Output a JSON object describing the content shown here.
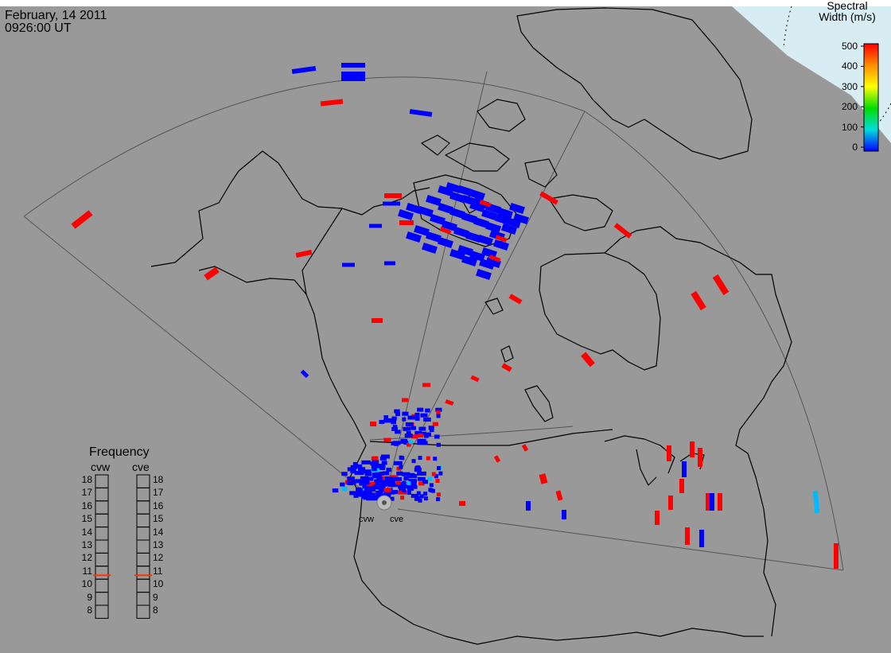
{
  "header": {
    "date": "February, 14 2011",
    "time": "0926:00 UT"
  },
  "colorbar": {
    "title_line1": "Spectral",
    "title_line2": "Width (m/s)",
    "ticks": [
      "500",
      "400",
      "300",
      "200",
      "100",
      "0"
    ],
    "range": [
      0,
      500
    ],
    "colors": [
      "#ff0000",
      "#ff8c00",
      "#ffff00",
      "#00dd00",
      "#00dddd",
      "#0000ff"
    ]
  },
  "frequency": {
    "title": "Frequency",
    "radars": [
      {
        "label": "cvw",
        "value_mhz": 10.8
      },
      {
        "label": "cve",
        "value_mhz": 10.8
      }
    ],
    "ticks": [
      "18",
      "17",
      "16",
      "15",
      "14",
      "13",
      "12",
      "11",
      "10",
      "9",
      "8"
    ],
    "marker_color": "#ff3300"
  },
  "sites": {
    "west": "cvw",
    "east": "cve"
  },
  "colors": {
    "background": "#999999",
    "coast": "#000000",
    "fov": "#555555",
    "low_width": "#0000ff",
    "high_width": "#ff0000",
    "mid_width": "#00bbff"
  }
}
